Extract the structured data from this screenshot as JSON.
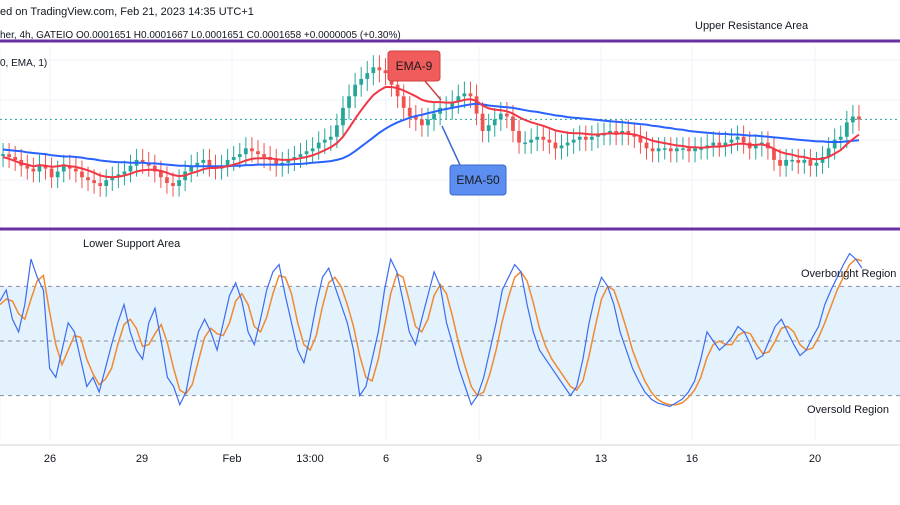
{
  "header": {
    "published": "ed on TradingView.com, Feb 21, 2023 14:35 UTC+1",
    "ticker_line": "her, 4h, GATEIO  O0.0001651  H0.0001667  L0.0001651  C0.0001658  +0.0000005 (+0.30%)",
    "indicator_line": "0, EMA, 1)"
  },
  "annotations": {
    "upper_area": "Upper Resistance Area",
    "lower_area": "Lower Support Area",
    "overbought": "Overbought Region",
    "oversold": "Oversold Region",
    "ema9": "EMA-9",
    "ema50": "EMA-50"
  },
  "colors": {
    "bull": "#26a69a",
    "bear": "#ef5350",
    "ema9": "#f23645",
    "ema50": "#2962ff",
    "band_line": "#6a2fa0",
    "stoch_k": "#3d6cf0",
    "stoch_d": "#f08a30",
    "stoch_fill": "#e3f2fd",
    "ema9_label_bg": "#f05b5b",
    "ema50_label_bg": "#5b8ef0"
  },
  "chart_data": [
    {
      "type": "candlestick",
      "interval": "4h",
      "x_ticks": [
        "26",
        "29",
        "Feb",
        "13:00",
        "6",
        "9",
        "13",
        "16",
        "20"
      ],
      "close": [
        0.00016,
        0.0001595,
        0.000159,
        0.000158,
        0.0001575,
        0.000157,
        0.000158,
        0.0001575,
        0.000156,
        0.000157,
        0.000158,
        0.0001575,
        0.000157,
        0.000156,
        0.0001555,
        0.000155,
        0.0001545,
        0.0001555,
        0.000156,
        0.0001565,
        0.000157,
        0.000158,
        0.000159,
        0.0001585,
        0.000158,
        0.000157,
        0.000156,
        0.000155,
        0.0001545,
        0.0001555,
        0.000157,
        0.000158,
        0.0001585,
        0.000159,
        0.000158,
        0.0001575,
        0.000158,
        0.000159,
        0.0001595,
        0.00016,
        0.000161,
        0.0001605,
        0.00016,
        0.0001595,
        0.000159,
        0.000158,
        0.0001585,
        0.000159,
        0.0001595,
        0.00016,
        0.0001605,
        0.000161,
        0.000162,
        0.0001625,
        0.000163,
        0.000165,
        0.000168,
        0.00017,
        0.000172,
        0.000173,
        0.000174,
        0.000175,
        0.0001745,
        0.000174,
        0.000172,
        0.00017,
        0.000168,
        0.0001665,
        0.000166,
        0.000165,
        0.000166,
        0.000167,
        0.000168,
        0.000168,
        0.000169,
        0.00017,
        0.0001705,
        0.00017,
        0.000167,
        0.000164,
        0.000165,
        0.000166,
        0.000167,
        0.0001665,
        0.000164,
        0.000162,
        0.000162,
        0.0001625,
        0.000163,
        0.0001625,
        0.000162,
        0.000161,
        0.0001615,
        0.000162,
        0.0001625,
        0.000163,
        0.0001625,
        0.000163,
        0.0001635,
        0.0001635,
        0.000164,
        0.0001635,
        0.000164,
        0.0001635,
        0.000163,
        0.000162,
        0.000161,
        0.0001605,
        0.000161,
        0.000161,
        0.0001605,
        0.000161,
        0.000161,
        0.0001605,
        0.000161,
        0.000161,
        0.0001615,
        0.000162,
        0.0001615,
        0.000162,
        0.0001625,
        0.000163,
        0.000162,
        0.000161,
        0.0001615,
        0.000162,
        0.000161,
        0.000159,
        0.000158,
        0.000159,
        0.000159,
        0.0001585,
        0.000159,
        0.000158,
        0.0001585,
        0.0001595,
        0.000161,
        0.0001625,
        0.000163,
        0.0001655,
        0.0001665,
        0.000166
      ]
    },
    {
      "type": "line",
      "name": "EMA-9",
      "values": [
        0.0001595,
        0.0001592,
        0.0001588,
        0.0001584,
        0.0001582,
        0.0001579,
        0.0001581,
        0.000158,
        0.0001578,
        0.0001579,
        0.0001581,
        0.0001579,
        0.0001578,
        0.0001575,
        0.0001572,
        0.0001568,
        0.0001563,
        0.0001561,
        0.000156,
        0.0001561,
        0.0001563,
        0.0001566,
        0.000157,
        0.0001572,
        0.0001573,
        0.0001573,
        0.0001571,
        0.0001568,
        0.0001564,
        0.0001562,
        0.0001563,
        0.0001567,
        0.000157,
        0.0001574,
        0.0001576,
        0.0001576,
        0.0001577,
        0.0001579,
        0.0001582,
        0.0001585,
        0.0001589,
        0.0001592,
        0.0001593,
        0.0001593,
        0.0001593,
        0.0001591,
        0.000159,
        0.000159,
        0.0001591,
        0.0001593,
        0.0001595,
        0.0001598,
        0.0001602,
        0.0001607,
        0.0001612,
        0.0001619,
        0.000163,
        0.0001645,
        0.0001661,
        0.0001676,
        0.000169,
        0.0001702,
        0.000171,
        0.0001716,
        0.0001716,
        0.0001714,
        0.000171,
        0.0001705,
        0.00017,
        0.0001694,
        0.0001691,
        0.000169,
        0.000169,
        0.0001689,
        0.0001689,
        0.0001691,
        0.0001694,
        0.0001695,
        0.0001692,
        0.0001684,
        0.0001679,
        0.0001677,
        0.0001676,
        0.0001674,
        0.000167,
        0.0001664,
        0.0001659,
        0.0001655,
        0.0001652,
        0.0001649,
        0.0001645,
        0.0001641,
        0.0001639,
        0.0001637,
        0.0001636,
        0.0001636,
        0.0001635,
        0.0001634,
        0.0001634,
        0.0001635,
        0.0001636,
        0.0001635,
        0.0001636,
        0.0001635,
        0.0001634,
        0.0001631,
        0.0001627,
        0.0001623,
        0.0001621,
        0.0001619,
        0.0001617,
        0.0001615,
        0.0001614,
        0.0001612,
        0.0001612,
        0.0001611,
        0.0001612,
        0.0001613,
        0.0001613,
        0.0001614,
        0.0001616,
        0.0001618,
        0.0001618,
        0.0001616,
        0.0001616,
        0.0001617,
        0.0001614,
        0.0001609,
        0.0001604,
        0.0001601,
        0.0001599,
        0.0001596,
        0.0001595,
        0.0001592,
        0.0001591,
        0.0001592,
        0.0001595,
        0.0001601,
        0.0001607,
        0.0001617,
        0.0001626,
        0.0001634
      ]
    },
    {
      "type": "line",
      "name": "EMA-50",
      "values": [
        0.0001608,
        0.0001607,
        0.0001606,
        0.0001605,
        0.0001603,
        0.0001602,
        0.0001601,
        0.00016,
        0.0001598,
        0.0001597,
        0.0001596,
        0.0001596,
        0.0001595,
        0.0001594,
        0.0001592,
        0.0001591,
        0.0001589,
        0.0001588,
        0.0001587,
        0.0001586,
        0.0001586,
        0.0001585,
        0.0001585,
        0.0001585,
        0.0001584,
        0.0001584,
        0.0001583,
        0.0001582,
        0.0001581,
        0.000158,
        0.000158,
        0.0001579,
        0.0001579,
        0.0001579,
        0.0001579,
        0.0001579,
        0.0001579,
        0.0001579,
        0.000158,
        0.000158,
        0.0001581,
        0.0001581,
        0.0001582,
        0.0001582,
        0.0001582,
        0.0001582,
        0.0001582,
        0.0001582,
        0.0001583,
        0.0001583,
        0.0001584,
        0.0001585,
        0.0001586,
        0.0001587,
        0.0001588,
        0.000159,
        0.0001593,
        0.0001598,
        0.0001605,
        0.0001613,
        0.0001621,
        0.0001629,
        0.0001637,
        0.0001644,
        0.000165,
        0.0001655,
        0.0001659,
        0.0001663,
        0.0001666,
        0.0001668,
        0.0001671,
        0.0001673,
        0.0001676,
        0.0001678,
        0.000168,
        0.0001682,
        0.0001684,
        0.0001686,
        0.0001687,
        0.0001686,
        0.0001684,
        0.0001683,
        0.0001682,
        0.0001681,
        0.000168,
        0.0001678,
        0.0001676,
        0.0001674,
        0.0001673,
        0.0001671,
        0.0001669,
        0.0001667,
        0.0001666,
        0.0001664,
        0.0001663,
        0.0001662,
        0.0001661,
        0.000166,
        0.0001659,
        0.0001658,
        0.0001657,
        0.0001656,
        0.0001655,
        0.0001654,
        0.0001653,
        0.0001652,
        0.0001651,
        0.0001649,
        0.0001648,
        0.0001646,
        0.0001645,
        0.0001643,
        0.0001642,
        0.000164,
        0.0001639,
        0.0001638,
        0.0001637,
        0.0001636,
        0.0001635,
        0.0001635,
        0.0001634,
        0.0001634,
        0.0001633,
        0.0001632,
        0.0001632,
        0.0001631,
        0.000163,
        0.0001629,
        0.0001628,
        0.0001627,
        0.0001626,
        0.0001625,
        0.0001624,
        0.0001623,
        0.0001622,
        0.0001622,
        0.0001621,
        0.0001621,
        0.0001621,
        0.0001622,
        0.0001623,
        0.0001624
      ]
    },
    {
      "type": "line",
      "name": "Stochastic",
      "ylim": [
        0,
        100
      ],
      "levels": [
        80,
        50,
        20
      ],
      "k": [
        72,
        78,
        62,
        55,
        70,
        95,
        85,
        78,
        35,
        30,
        45,
        60,
        55,
        40,
        25,
        30,
        22,
        35,
        48,
        60,
        70,
        55,
        45,
        40,
        60,
        68,
        50,
        30,
        25,
        15,
        22,
        40,
        55,
        62,
        55,
        45,
        60,
        75,
        82,
        72,
        55,
        48,
        62,
        78,
        88,
        92,
        75,
        60,
        45,
        38,
        52,
        70,
        85,
        90,
        80,
        70,
        60,
        45,
        20,
        25,
        40,
        55,
        78,
        95,
        88,
        72,
        55,
        48,
        62,
        75,
        88,
        80,
        60,
        48,
        35,
        25,
        15,
        20,
        30,
        45,
        60,
        78,
        85,
        92,
        88,
        70,
        55,
        45,
        40,
        35,
        30,
        25,
        20,
        25,
        40,
        60,
        75,
        85,
        80,
        70,
        55,
        45,
        35,
        28,
        22,
        18,
        16,
        15,
        14,
        16,
        18,
        22,
        28,
        40,
        55,
        50,
        45,
        48,
        52,
        58,
        55,
        48,
        40,
        42,
        50,
        58,
        62,
        55,
        48,
        42,
        45,
        52,
        58,
        70,
        78,
        85,
        92,
        98,
        95,
        90
      ]
    },
    {
      "type": "line",
      "name": "Stochastic Signal",
      "ylim": [
        0,
        100
      ],
      "d": [
        70,
        73,
        72,
        65,
        62,
        73,
        83,
        86,
        66,
        48,
        37,
        45,
        53,
        52,
        40,
        32,
        26,
        29,
        35,
        48,
        59,
        62,
        57,
        47,
        48,
        54,
        59,
        49,
        35,
        23,
        21,
        26,
        39,
        52,
        57,
        54,
        53,
        60,
        72,
        76,
        70,
        58,
        55,
        63,
        76,
        86,
        85,
        76,
        60,
        48,
        45,
        53,
        69,
        82,
        85,
        80,
        70,
        58,
        42,
        30,
        28,
        40,
        58,
        76,
        87,
        85,
        72,
        58,
        55,
        62,
        75,
        81,
        76,
        63,
        48,
        36,
        25,
        20,
        22,
        32,
        45,
        61,
        74,
        85,
        88,
        83,
        71,
        57,
        47,
        40,
        35,
        30,
        25,
        23,
        28,
        42,
        58,
        73,
        80,
        78,
        68,
        57,
        45,
        36,
        28,
        22,
        18,
        16,
        15,
        15,
        16,
        19,
        23,
        30,
        41,
        48,
        50,
        48,
        48,
        53,
        55,
        54,
        48,
        43,
        44,
        50,
        57,
        58,
        55,
        48,
        45,
        46,
        52,
        60,
        69,
        78,
        85,
        92,
        95,
        94
      ]
    }
  ]
}
